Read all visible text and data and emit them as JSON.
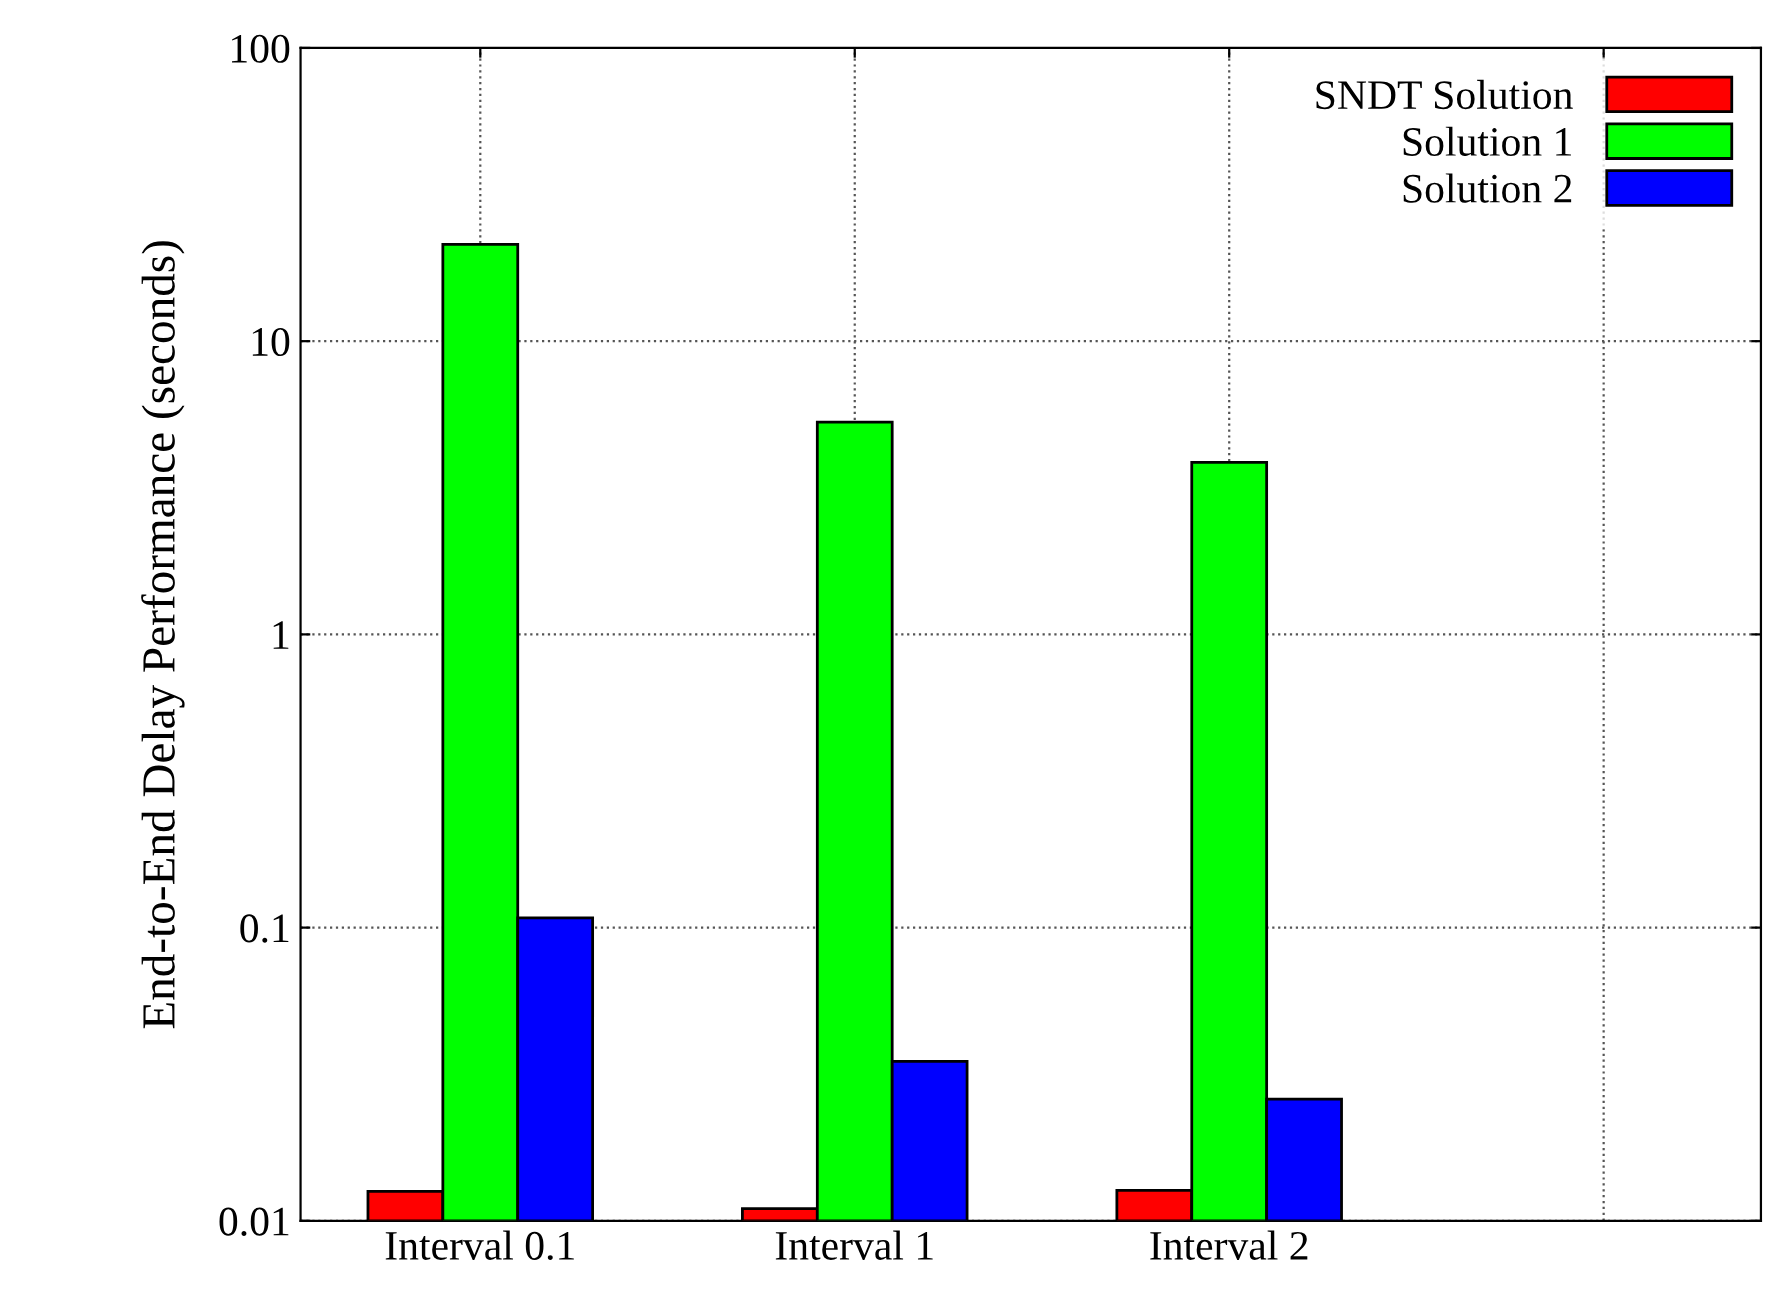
{
  "chart_data": {
    "type": "bar",
    "ylabel": "End-to-End Delay Performance (seconds)",
    "categories": [
      "Interval 0.1",
      "Interval 1",
      "Interval 2",
      null
    ],
    "series": [
      {
        "name": "SNDT Solution",
        "color": "#ff0000",
        "values": [
          0.0126,
          0.011,
          0.0127,
          null
        ]
      },
      {
        "name": "Solution 1",
        "color": "#00ff00",
        "values": [
          21.4,
          5.3,
          3.86,
          null
        ]
      },
      {
        "name": "Solution 2",
        "color": "#0000ff",
        "values": [
          0.108,
          0.035,
          0.026,
          null
        ]
      }
    ],
    "log": "y",
    "ylim": [
      0.01,
      100
    ],
    "yticks": [
      {
        "value": 0.01,
        "label": "0.01"
      },
      {
        "value": 0.1,
        "label": "0.1"
      },
      1,
      10,
      100
    ],
    "grid": true,
    "legend": "top right"
  }
}
